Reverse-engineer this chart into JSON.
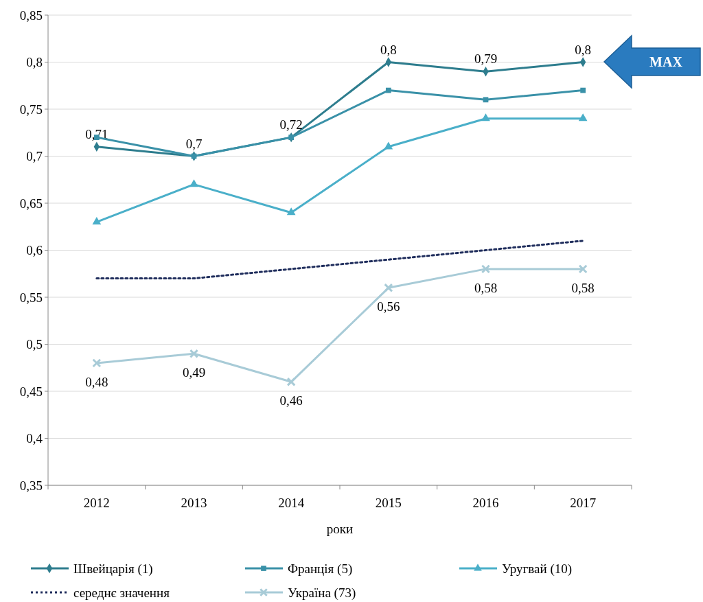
{
  "chart_data": {
    "type": "line",
    "xlabel": "роки",
    "categories": [
      "2012",
      "2013",
      "2014",
      "2015",
      "2016",
      "2017"
    ],
    "ylim": [
      0.35,
      0.85
    ],
    "yticks": [
      {
        "value": 0.35,
        "label": "0,35"
      },
      {
        "value": 0.4,
        "label": "0,4"
      },
      {
        "value": 0.45,
        "label": "0,45"
      },
      {
        "value": 0.5,
        "label": "0,5"
      },
      {
        "value": 0.55,
        "label": "0,55"
      },
      {
        "value": 0.6,
        "label": "0,6"
      },
      {
        "value": 0.65,
        "label": "0,65"
      },
      {
        "value": 0.7,
        "label": "0,7"
      },
      {
        "value": 0.75,
        "label": "0,75"
      },
      {
        "value": 0.8,
        "label": "0,8"
      },
      {
        "value": 0.85,
        "label": "0,85"
      }
    ],
    "grid": "y",
    "legend": "bottom",
    "line_style": "solid",
    "annotations": [
      "MAX"
    ],
    "series": [
      {
        "name": "Швейцарія (1)",
        "color": "#2e7d8e",
        "marker": "diamond",
        "values": [
          0.71,
          0.7,
          0.72,
          0.8,
          0.79,
          0.8
        ],
        "value_labels": [
          "0,71",
          "0,7",
          "0,72",
          "0,8",
          "0,79",
          "0,8"
        ]
      },
      {
        "name": "Франція (5)",
        "color": "#3a91a8",
        "marker": "square",
        "values": [
          0.72,
          0.7,
          0.72,
          0.77,
          0.76,
          0.77
        ]
      },
      {
        "name": "Уругвай (10)",
        "color": "#4aafc9",
        "marker": "triangle",
        "values": [
          0.63,
          0.67,
          0.64,
          0.71,
          0.74,
          0.74
        ]
      },
      {
        "name": "середнє значення",
        "color": "#1f2d5c",
        "marker": "none",
        "line_style": "dotted",
        "values": [
          0.57,
          0.57,
          0.58,
          0.59,
          0.6,
          0.61
        ]
      },
      {
        "name": "Україна (73)",
        "color": "#a8cbd7",
        "marker": "cross",
        "values": [
          0.48,
          0.49,
          0.46,
          0.56,
          0.58,
          0.58
        ],
        "value_labels": [
          "0,48",
          "0,49",
          "0,46",
          "0,56",
          "0,58",
          "0,58"
        ]
      }
    ]
  }
}
